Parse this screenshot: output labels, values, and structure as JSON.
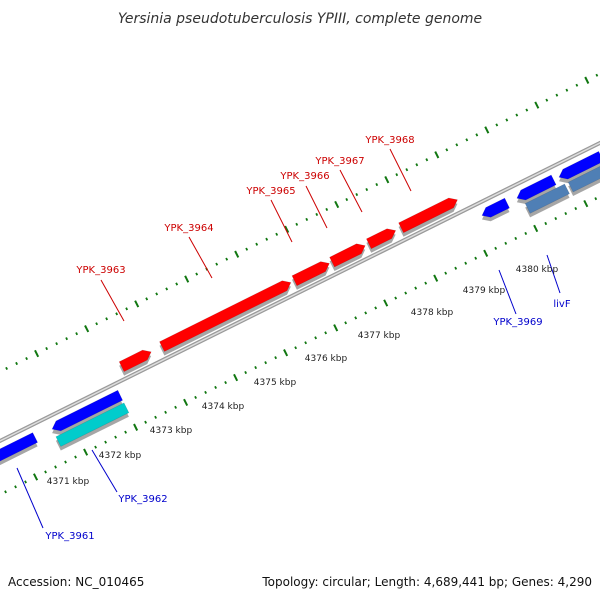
{
  "title": "Yersinia pseudotuberculosis YPIII, complete genome",
  "accession": "Accession: NC_010465",
  "topology": "Topology: circular; Length: 4,689,441 bp; Genes: 4,290",
  "colors": {
    "forward_gene": "#ff0000",
    "reverse_gene": "#0000ff",
    "cyan_gene": "#00cccc",
    "steel_gene": "#4f7fb5",
    "forward_label": "#cc0000",
    "reverse_label": "#0000cc",
    "backbone": "#888888",
    "tick": "#117711"
  },
  "scale_labels": [
    "4371 kbp",
    "4372 kbp",
    "4373 kbp",
    "4374 kbp",
    "4375 kbp",
    "4376 kbp",
    "4377 kbp",
    "4378 kbp",
    "4379 kbp",
    "4380 kbp"
  ],
  "forward_labels": [
    "YPK_3963",
    "YPK_3964",
    "YPK_3965",
    "YPK_3966",
    "YPK_3967",
    "YPK_3968"
  ],
  "reverse_labels": [
    "YPK_3961",
    "YPK_3962",
    "YPK_3969",
    "livF"
  ]
}
